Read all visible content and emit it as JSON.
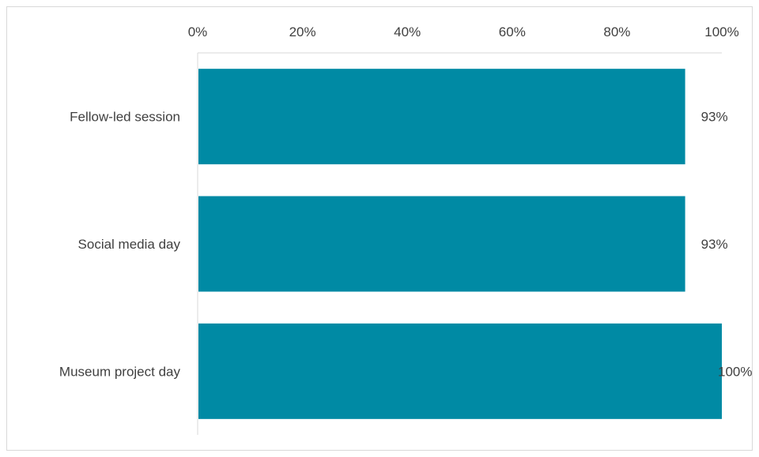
{
  "chart_data": {
    "type": "bar",
    "orientation": "horizontal",
    "categories": [
      "Fellow-led session",
      "Social media day",
      "Museum project day"
    ],
    "values": [
      93,
      93,
      100
    ],
    "data_labels": [
      "93%",
      "93%",
      "100%"
    ],
    "x_ticks": [
      "0%",
      "20%",
      "40%",
      "60%",
      "80%",
      "100%"
    ],
    "xlim": [
      0,
      100
    ],
    "x_axis_position": "top",
    "grid": false,
    "legend": "none",
    "bar_color": "#008aa4",
    "title": "",
    "xlabel": "",
    "ylabel": ""
  }
}
